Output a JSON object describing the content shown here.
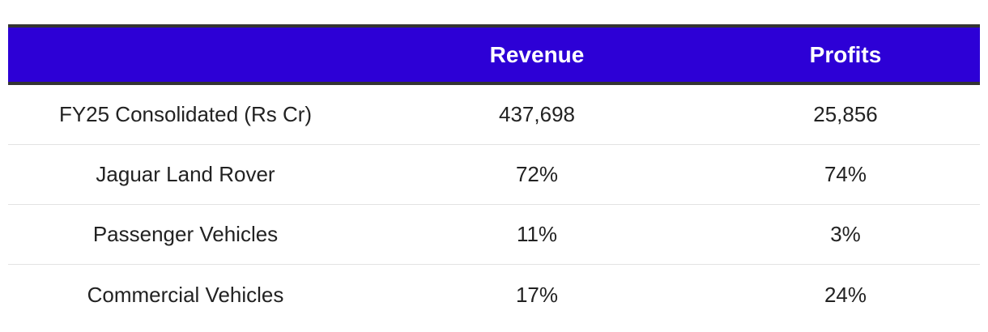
{
  "table": {
    "headers": [
      "",
      "Revenue",
      "Profits"
    ],
    "rows": [
      {
        "label": "FY25 Consolidated (Rs Cr)",
        "revenue": "437,698",
        "profits": "25,856"
      },
      {
        "label": "Jaguar Land Rover",
        "revenue": "72%",
        "profits": "74%"
      },
      {
        "label": "Passenger Vehicles",
        "revenue": "11%",
        "profits": "3%"
      },
      {
        "label": "Commercial Vehicles",
        "revenue": "17%",
        "profits": "24%"
      }
    ]
  },
  "colors": {
    "header_bg": "#2d00d6",
    "header_text": "#ffffff",
    "header_border": "#333333",
    "row_divider": "#e3e3e3",
    "body_text": "#222222"
  }
}
